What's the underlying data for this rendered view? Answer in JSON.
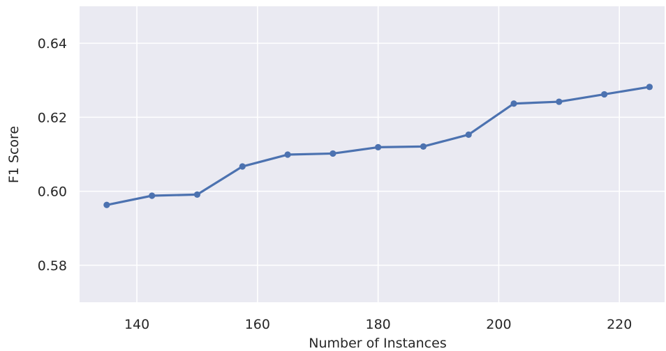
{
  "chart_data": {
    "type": "line",
    "title": "",
    "xlabel": "Number of Instances",
    "ylabel": "F1 Score",
    "xlim": [
      130.5,
      227.5
    ],
    "ylim": [
      0.57,
      0.65
    ],
    "x_ticks": [
      140,
      160,
      180,
      200,
      220
    ],
    "y_ticks": [
      0.58,
      0.6,
      0.62,
      0.64
    ],
    "x_tick_labels": [
      "140",
      "160",
      "180",
      "200",
      "220"
    ],
    "y_tick_labels": [
      "0.58",
      "0.60",
      "0.62",
      "0.64"
    ],
    "grid": true,
    "series": [
      {
        "color": "#4c72b0",
        "x": [
          135,
          142.5,
          150,
          157.5,
          165,
          172.5,
          180,
          187.5,
          195,
          202.5,
          210,
          217.5,
          225
        ],
        "y": [
          0.5963,
          0.5988,
          0.5991,
          0.6067,
          0.6099,
          0.6102,
          0.6119,
          0.6121,
          0.6153,
          0.6237,
          0.6242,
          0.6262,
          0.6282
        ]
      }
    ]
  },
  "colors": {
    "plot_bg": "#eaeaf2",
    "grid": "#ffffff",
    "text": "#262626"
  }
}
